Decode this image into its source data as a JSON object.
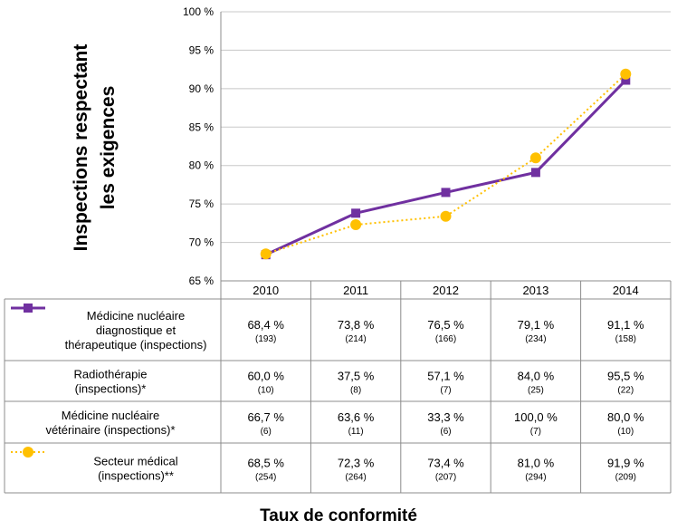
{
  "chart_data": {
    "type": "line",
    "ylabel_lines": [
      "Inspections respectant",
      "les exigences"
    ],
    "xlabel": "Taux de conformité",
    "ylim": [
      65,
      100
    ],
    "ytick_labels": [
      "65 %",
      "70 %",
      "75 %",
      "80 %",
      "85 %",
      "90 %",
      "95 %",
      "100 %"
    ],
    "categories": [
      "2010",
      "2011",
      "2012",
      "2013",
      "2014"
    ],
    "grid": true,
    "rows": [
      {
        "name_lines": [
          "Médicine nucléaire",
          "diagnostique et",
          "thérapeutique (inspections)"
        ],
        "values": [
          "68,4 %",
          "73,8 %",
          "76,5 %",
          "79,1 %",
          "91,1 %"
        ],
        "counts": [
          "(193)",
          "(214)",
          "(166)",
          "(234)",
          "(158)"
        ],
        "plotted": true,
        "y": [
          68.4,
          73.8,
          76.5,
          79.1,
          91.1
        ],
        "color": "#7030a0",
        "style": "solid",
        "marker": "square"
      },
      {
        "name_lines": [
          "Radiothérapie",
          "(inspections)*"
        ],
        "values": [
          "60,0 %",
          "37,5 %",
          "57,1 %",
          "84,0 %",
          "95,5 %"
        ],
        "counts": [
          "(10)",
          "(8)",
          "(7)",
          "(25)",
          "(22)"
        ],
        "plotted": false
      },
      {
        "name_lines": [
          "Médicine nucléaire",
          "vétérinaire (inspections)*"
        ],
        "values": [
          "66,7 %",
          "63,6 %",
          "33,3 %",
          "100,0 %",
          "80,0 %"
        ],
        "counts": [
          "(6)",
          "(11)",
          "(6)",
          "(7)",
          "(10)"
        ],
        "plotted": false
      },
      {
        "name_lines": [
          "Secteur médical",
          "(inspections)**"
        ],
        "values": [
          "68,5 %",
          "72,3 %",
          "73,4 %",
          "81,0 %",
          "91,9 %"
        ],
        "counts": [
          "(254)",
          "(264)",
          "(207)",
          "(294)",
          "(209)"
        ],
        "plotted": true,
        "y": [
          68.5,
          72.3,
          73.4,
          81.0,
          91.9
        ],
        "color": "#ffc000",
        "style": "dotted",
        "marker": "circle"
      }
    ]
  }
}
